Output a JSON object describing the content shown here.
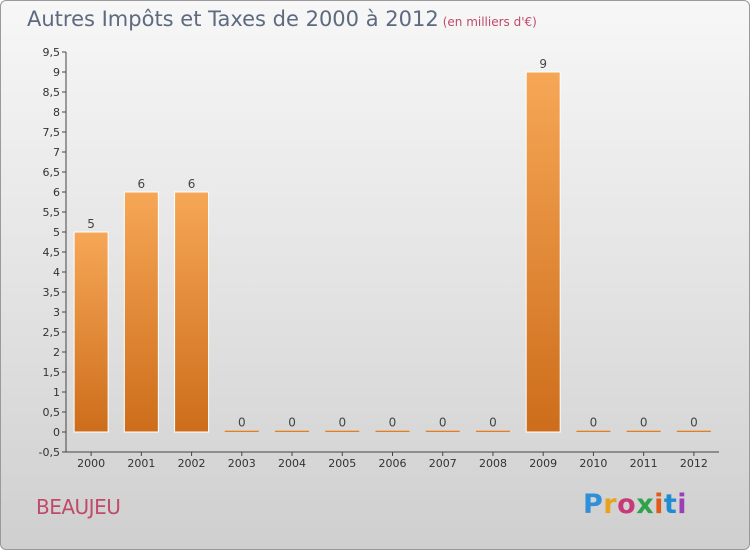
{
  "header": {
    "title": "Autres Impôts et Taxes de 2000 à 2012",
    "unit": "(en milliers d'€)"
  },
  "footer": {
    "commune": "BEAUJEU",
    "logo": {
      "text": "Proxiti",
      "colors": [
        "#2f8fd8",
        "#e8a31c",
        "#c63a7a",
        "#2fa34a",
        "#e05a1a",
        "#1f8bd0",
        "#9a3fb8"
      ]
    }
  },
  "colors": {
    "bar_top": "#f6a756",
    "bar_bottom": "#cd6d1b",
    "title": "#5d6a7f",
    "accent": "#c04a6a"
  },
  "chart_data": {
    "type": "bar",
    "title": "Autres Impôts et Taxes de 2000 à 2012",
    "subtitle": "(en milliers d'€)",
    "categories": [
      "2000",
      "2001",
      "2002",
      "2003",
      "2004",
      "2005",
      "2006",
      "2007",
      "2008",
      "2009",
      "2010",
      "2011",
      "2012"
    ],
    "values": [
      5,
      6,
      6,
      0,
      0,
      0,
      0,
      0,
      0,
      9,
      0,
      0,
      0
    ],
    "data_labels": [
      "5",
      "6",
      "6",
      "0",
      "0",
      "0",
      "0",
      "0",
      "0",
      "9",
      "0",
      "0",
      "0"
    ],
    "ylim": [
      -0.5,
      9.5
    ],
    "yticks": [
      "-0,5",
      "0",
      "0,5",
      "1",
      "1,5",
      "2",
      "2,5",
      "3",
      "3,5",
      "4",
      "4,5",
      "5",
      "5,5",
      "6",
      "6,5",
      "7",
      "7,5",
      "8",
      "8,5",
      "9",
      "9,5"
    ],
    "grid": false,
    "legend": "none"
  }
}
